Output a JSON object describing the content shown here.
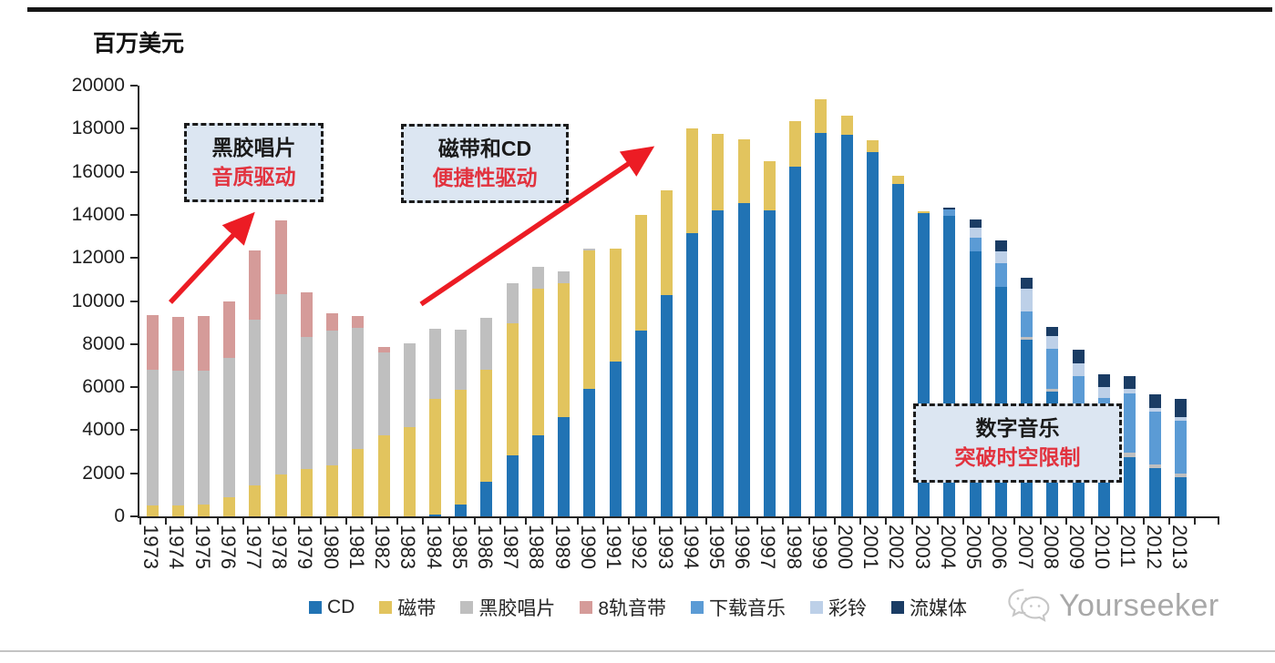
{
  "page": {
    "unit_label": "百万美元",
    "watermark_text": "Yourseeker"
  },
  "annotations": [
    {
      "line1": "黑胶唱片",
      "line2": "音质驱动"
    },
    {
      "line1": "磁带和CD",
      "line2": "便捷性驱动"
    },
    {
      "line1": "数字音乐",
      "line2": "突破时空限制"
    }
  ],
  "colors": {
    "accent_red": "#ec1c24",
    "annotation_fill": "#dce6f2",
    "axis": "#262626"
  },
  "chart_data": {
    "type": "bar",
    "stacked": true,
    "title": "",
    "ylabel": "百万美元",
    "xlabel": "",
    "ylim": [
      0,
      20000
    ],
    "ytick_step": 2000,
    "grid": false,
    "legend_position": "bottom",
    "categories": [
      1973,
      1974,
      1975,
      1976,
      1977,
      1978,
      1979,
      1980,
      1981,
      1982,
      1983,
      1984,
      1985,
      1986,
      1987,
      1988,
      1989,
      1990,
      1991,
      1992,
      1993,
      1994,
      1995,
      1996,
      1997,
      1998,
      1999,
      2000,
      2001,
      2002,
      2003,
      2004,
      2005,
      2006,
      2007,
      2008,
      2009,
      2010,
      2011,
      2012,
      2013
    ],
    "series": [
      {
        "name": "CD",
        "color": "#2173b4",
        "values": [
          0,
          0,
          0,
          0,
          0,
          0,
          0,
          0,
          0,
          0,
          0,
          100,
          550,
          1600,
          2830,
          3760,
          4610,
          5920,
          7190,
          8630,
          10270,
          13150,
          14210,
          14550,
          14210,
          16230,
          17800,
          17710,
          16910,
          15430,
          14060,
          13950,
          12300,
          10650,
          8200,
          5790,
          5030,
          3900,
          2750,
          2240,
          1820
        ]
      },
      {
        "name": "磁带",
        "color": "#e2c45e",
        "values": [
          500,
          500,
          550,
          900,
          1450,
          1950,
          2200,
          2370,
          3130,
          3760,
          4150,
          5350,
          5340,
          5200,
          6130,
          6810,
          6210,
          6410,
          5240,
          5370,
          4860,
          4860,
          3550,
          2960,
          2280,
          2120,
          1560,
          890,
          550,
          380,
          100,
          0,
          0,
          0,
          0,
          0,
          0,
          0,
          0,
          0,
          0
        ]
      },
      {
        "name": "黑胶唱片",
        "color": "#bfbfbf",
        "values": [
          6310,
          6270,
          6210,
          6460,
          7680,
          8370,
          6130,
          6260,
          5620,
          3850,
          3880,
          3260,
          2770,
          2420,
          1860,
          1010,
          550,
          100,
          0,
          0,
          0,
          0,
          0,
          0,
          0,
          0,
          0,
          0,
          0,
          0,
          0,
          0,
          0,
          0,
          130,
          130,
          100,
          90,
          210,
          180,
          170
        ]
      },
      {
        "name": "8轨音带",
        "color": "#d59b99",
        "values": [
          2530,
          2490,
          2540,
          2620,
          3220,
          3420,
          2070,
          800,
          550,
          250,
          0,
          0,
          0,
          0,
          0,
          0,
          0,
          0,
          0,
          0,
          0,
          0,
          0,
          0,
          0,
          0,
          0,
          0,
          0,
          0,
          0,
          0,
          0,
          0,
          0,
          0,
          0,
          0,
          0,
          0,
          0
        ]
      },
      {
        "name": "下载音乐",
        "color": "#5b9bd5",
        "values": [
          0,
          0,
          0,
          0,
          0,
          0,
          0,
          0,
          0,
          0,
          0,
          0,
          0,
          0,
          0,
          0,
          0,
          0,
          0,
          0,
          0,
          0,
          0,
          0,
          0,
          0,
          0,
          0,
          0,
          0,
          0,
          280,
          650,
          1100,
          1180,
          1860,
          1390,
          1500,
          2750,
          2450,
          2450
        ]
      },
      {
        "name": "彩铃",
        "color": "#bdd0e8",
        "values": [
          0,
          0,
          0,
          0,
          0,
          0,
          0,
          0,
          0,
          0,
          0,
          0,
          0,
          0,
          0,
          0,
          0,
          0,
          0,
          0,
          0,
          0,
          0,
          0,
          0,
          0,
          0,
          0,
          0,
          0,
          0,
          0,
          450,
          550,
          1060,
          590,
          590,
          520,
          210,
          180,
          170
        ]
      },
      {
        "name": "流媒体",
        "color": "#1a3c64",
        "values": [
          0,
          0,
          0,
          0,
          0,
          0,
          0,
          0,
          0,
          0,
          0,
          0,
          0,
          0,
          0,
          0,
          0,
          0,
          0,
          0,
          0,
          0,
          0,
          0,
          0,
          0,
          0,
          0,
          0,
          0,
          0,
          100,
          380,
          510,
          510,
          420,
          640,
          590,
          590,
          630,
          845
        ]
      }
    ]
  }
}
